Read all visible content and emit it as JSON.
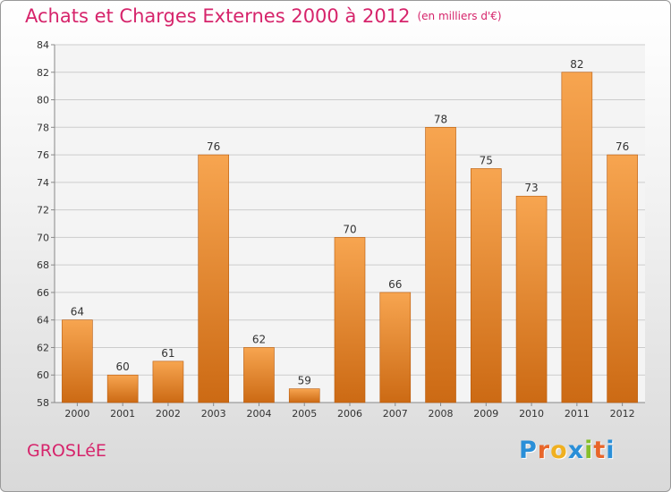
{
  "title": "Achats et Charges Externes 2000 à 2012",
  "subtitle": "(en milliers d'€)",
  "place": "GROSLéE",
  "logo": {
    "letters": [
      {
        "ch": "P",
        "color": "#2a8fd8"
      },
      {
        "ch": "r",
        "color": "#e8662a"
      },
      {
        "ch": "o",
        "color": "#f0b020"
      },
      {
        "ch": "x",
        "color": "#2a8fd8"
      },
      {
        "ch": "i",
        "color": "#86bf2a"
      },
      {
        "ch": "t",
        "color": "#e8662a"
      },
      {
        "ch": "i",
        "color": "#2a8fd8"
      }
    ]
  },
  "colors": {
    "bar_light": "#f7a550",
    "bar_dark": "#cc6a14",
    "grid": "#cccccc",
    "axis": "#888888",
    "text": "#333333",
    "accent": "#d6246b"
  },
  "chart_data": {
    "type": "bar",
    "categories": [
      "2000",
      "2001",
      "2002",
      "2003",
      "2004",
      "2005",
      "2006",
      "2007",
      "2008",
      "2009",
      "2010",
      "2011",
      "2012"
    ],
    "values": [
      64,
      60,
      61,
      76,
      62,
      59,
      70,
      66,
      78,
      75,
      73,
      82,
      76
    ],
    "ylim": [
      58,
      84
    ],
    "yticks": [
      58,
      60,
      62,
      64,
      66,
      68,
      70,
      72,
      74,
      76,
      78,
      80,
      82,
      84
    ],
    "grid": true
  }
}
